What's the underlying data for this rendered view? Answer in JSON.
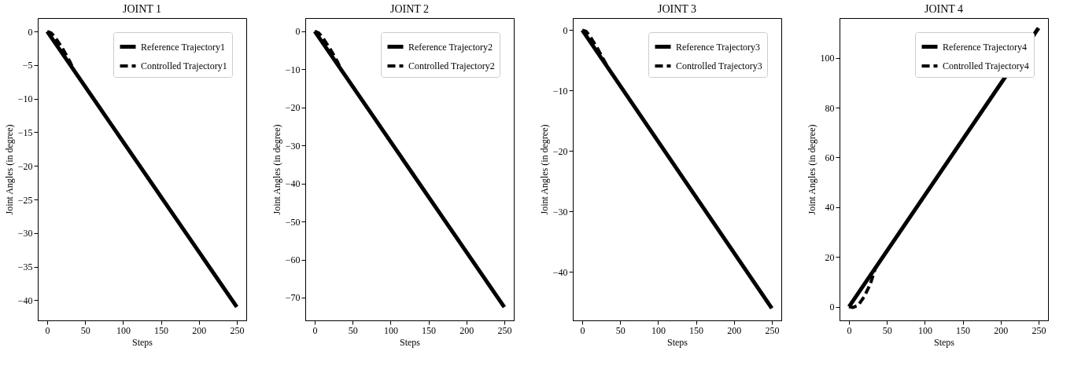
{
  "chart_data": [
    {
      "type": "line",
      "title": "JOINT 1",
      "xlabel": "Steps",
      "ylabel": "Joint Angles (in degree)",
      "xlim": [
        -12.5,
        262.5
      ],
      "xticks": [
        0,
        50,
        100,
        150,
        200,
        250
      ],
      "ylim": [
        -43,
        2
      ],
      "yticks": [
        0,
        -5,
        -10,
        -15,
        -20,
        -25,
        -30,
        -35,
        -40
      ],
      "legend": "top right",
      "grid": false,
      "series": [
        {
          "name": "Reference Trajectory1",
          "color": "#000000",
          "line_style": "solid",
          "x": [
            0,
            250
          ],
          "values": [
            0,
            -41
          ]
        },
        {
          "name": "Controlled Trajectory1",
          "color": "#000000",
          "line_style": "dashed",
          "x": [
            0,
            5,
            10,
            20,
            30,
            35
          ],
          "values": [
            0,
            -0.2,
            -0.8,
            -2.5,
            -4.5,
            -5.8
          ]
        }
      ]
    },
    {
      "type": "line",
      "title": "JOINT 2",
      "xlabel": "Steps",
      "ylabel": "Joint Angles (in degree)",
      "xlim": [
        -12.5,
        262.5
      ],
      "xticks": [
        0,
        50,
        100,
        150,
        200,
        250
      ],
      "ylim": [
        -76,
        3.5
      ],
      "yticks": [
        0,
        -10,
        -20,
        -30,
        -40,
        -50,
        -60,
        -70
      ],
      "legend": "top right",
      "grid": false,
      "series": [
        {
          "name": "Reference Trajectory2",
          "color": "#000000",
          "line_style": "solid",
          "x": [
            0,
            250
          ],
          "values": [
            0,
            -72.5
          ]
        },
        {
          "name": "Controlled Trajectory2",
          "color": "#000000",
          "line_style": "dashed",
          "x": [
            0,
            5,
            10,
            20,
            30,
            35
          ],
          "values": [
            0,
            -0.4,
            -1.5,
            -4.5,
            -8,
            -10.2
          ]
        }
      ]
    },
    {
      "type": "line",
      "title": "JOINT 3",
      "xlabel": "Steps",
      "ylabel": "Joint Angles (in degree)",
      "xlim": [
        -12.5,
        262.5
      ],
      "xticks": [
        0,
        50,
        100,
        150,
        200,
        250
      ],
      "ylim": [
        -48,
        2
      ],
      "yticks": [
        0,
        -10,
        -20,
        -30,
        -40
      ],
      "legend": "top right",
      "grid": false,
      "series": [
        {
          "name": "Reference Trajectory3",
          "color": "#000000",
          "line_style": "solid",
          "x": [
            0,
            250
          ],
          "values": [
            0,
            -46
          ]
        },
        {
          "name": "Controlled Trajectory3",
          "color": "#000000",
          "line_style": "dashed",
          "x": [
            0,
            5,
            10,
            20,
            30,
            35
          ],
          "values": [
            0,
            -0.2,
            -1,
            -3,
            -5.3,
            -6.4
          ]
        }
      ]
    },
    {
      "type": "line",
      "title": "JOINT 4",
      "xlabel": "Steps",
      "ylabel": "Joint Angles (in degree)",
      "xlim": [
        -12.5,
        262.5
      ],
      "xticks": [
        0,
        50,
        100,
        150,
        200,
        250
      ],
      "ylim": [
        -5.5,
        116
      ],
      "yticks": [
        0,
        20,
        40,
        60,
        80,
        100
      ],
      "legend": "top right",
      "grid": false,
      "series": [
        {
          "name": "Reference Trajectory4",
          "color": "#000000",
          "line_style": "solid",
          "x": [
            0,
            250
          ],
          "values": [
            0,
            112
          ]
        },
        {
          "name": "Controlled Trajectory4",
          "color": "#000000",
          "line_style": "dashed",
          "x": [
            0,
            5,
            12,
            20,
            28,
            35
          ],
          "values": [
            0,
            -0.3,
            0.5,
            4,
            9,
            15.7
          ]
        }
      ]
    }
  ]
}
